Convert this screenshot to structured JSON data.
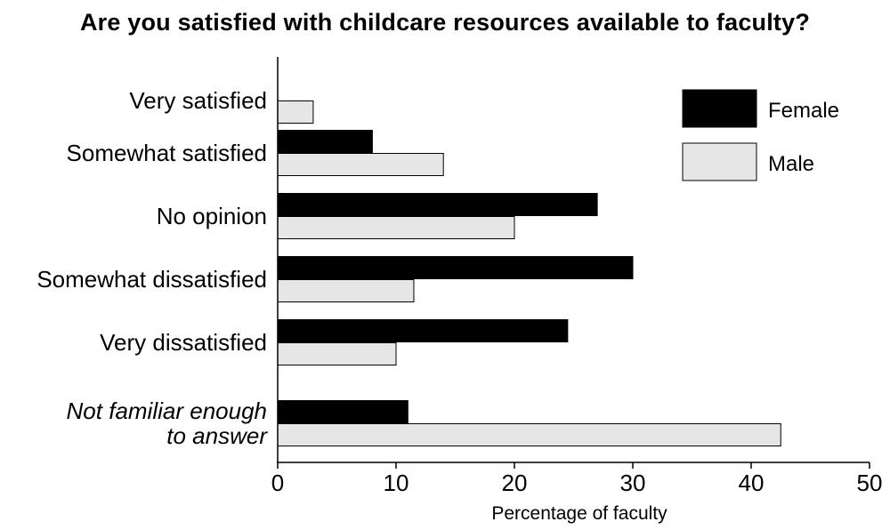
{
  "chart_data": {
    "type": "bar",
    "orientation": "horizontal",
    "title": "Are you satisfied with childcare resources available to faculty?",
    "xlabel": "Percentage of faculty",
    "ylabel": "",
    "xlim": [
      0,
      50
    ],
    "xticks": [
      0,
      10,
      20,
      30,
      40,
      50
    ],
    "categories": [
      "Very satisfied",
      "Somewhat satisfied",
      "No opinion",
      "Somewhat dissatisfied",
      "Very dissatisfied",
      "Not familiar enough to answer"
    ],
    "category_lines": [
      [
        "Very satisfied"
      ],
      [
        "Somewhat satisfied"
      ],
      [
        "No opinion"
      ],
      [
        "Somewhat dissatisfied"
      ],
      [
        "Very dissatisfied"
      ],
      [
        "Not familiar enough",
        "to answer"
      ]
    ],
    "italic_categories": [
      "Not familiar enough to answer"
    ],
    "series": [
      {
        "name": "Female",
        "color": "#000000",
        "values": [
          0,
          8,
          27,
          30,
          24.5,
          11
        ]
      },
      {
        "name": "Male",
        "color": "#e6e6e6",
        "values": [
          3,
          14,
          20,
          11.5,
          10,
          42.5
        ]
      }
    ],
    "legend_position": "top-right",
    "grid": false
  }
}
